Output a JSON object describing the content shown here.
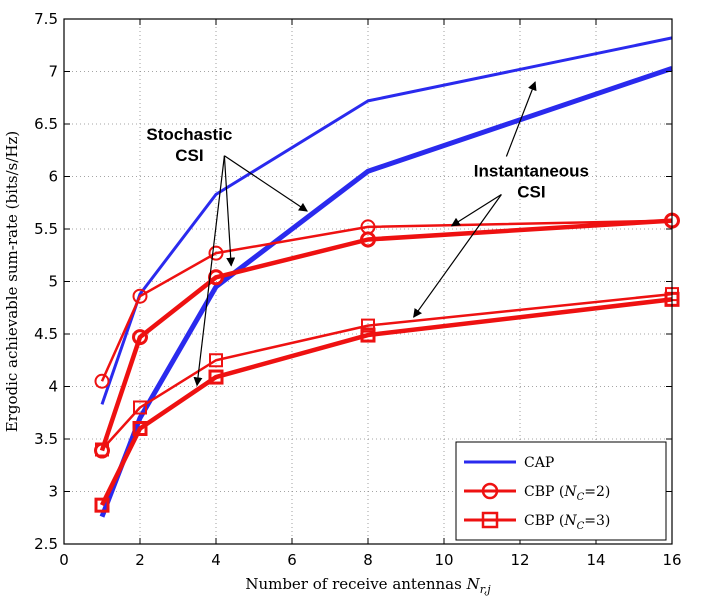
{
  "chart_data": {
    "type": "line",
    "title": "",
    "xlabel": "Number of receive antennas",
    "xlabel_symbol": "N",
    "xlabel_subscript": "r,j",
    "ylabel": "Ergodic achievable sum-rate (bits/s/Hz)",
    "xlim": [
      0,
      16
    ],
    "ylim": [
      2.5,
      7.5
    ],
    "xticks": [
      0,
      2,
      4,
      6,
      8,
      10,
      12,
      14,
      16
    ],
    "yticks": [
      2.5,
      3,
      3.5,
      4,
      4.5,
      5,
      5.5,
      6,
      6.5,
      7,
      7.5
    ],
    "grid": true,
    "legend_position": "bottom-right",
    "colors": {
      "cap": "#2a2aee",
      "cbp": "#ee1111"
    },
    "x": [
      1,
      2,
      4,
      8,
      16
    ],
    "series": [
      {
        "name": "CAP",
        "csi": "instantaneous",
        "color": "#2a2aee",
        "marker": "none",
        "width": 3,
        "values": [
          3.83,
          4.88,
          5.83,
          6.72,
          7.32
        ]
      },
      {
        "name": "CAP",
        "csi": "stochastic",
        "color": "#2a2aee",
        "marker": "none",
        "width": 5,
        "values": [
          2.76,
          3.7,
          4.95,
          6.05,
          7.03
        ]
      },
      {
        "name": "CBP (N_C=2)",
        "csi": "instantaneous",
        "color": "#ee1111",
        "marker": "circle",
        "width": 2.5,
        "values": [
          4.05,
          4.86,
          5.27,
          5.52,
          5.58
        ]
      },
      {
        "name": "CBP (N_C=2)",
        "csi": "stochastic",
        "color": "#ee1111",
        "marker": "circle",
        "width": 4.5,
        "values": [
          3.39,
          4.47,
          5.04,
          5.4,
          5.58
        ]
      },
      {
        "name": "CBP (N_C=3)",
        "csi": "instantaneous",
        "color": "#ee1111",
        "marker": "square",
        "width": 2.5,
        "values": [
          3.4,
          3.8,
          4.25,
          4.58,
          4.88
        ]
      },
      {
        "name": "CBP (N_C=3)",
        "csi": "stochastic",
        "color": "#ee1111",
        "marker": "square",
        "width": 4.5,
        "values": [
          2.87,
          3.6,
          4.09,
          4.49,
          4.83
        ]
      }
    ],
    "annotations": [
      {
        "label": "stochastic",
        "lines": [
          "Stochastic",
          "CSI"
        ],
        "text_at": [
          3.3,
          6.35
        ],
        "targets": [
          [
            6.4,
            5.67
          ],
          [
            4.4,
            5.15
          ],
          [
            3.5,
            4.01
          ]
        ]
      },
      {
        "label": "instantaneous",
        "lines": [
          "Instantaneous",
          "CSI"
        ],
        "text_at": [
          12.3,
          6.0
        ],
        "targets": [
          [
            12.4,
            6.9
          ],
          [
            10.2,
            5.53
          ],
          [
            9.2,
            4.66
          ]
        ]
      }
    ],
    "legend": [
      {
        "label": "CAP",
        "marker": "none",
        "color": "#2a2aee"
      },
      {
        "label": "CBP (N_C=2)",
        "prefix": "CBP (",
        "sym": "N",
        "sub": "C",
        "suffix": "=2)",
        "marker": "circle",
        "color": "#ee1111"
      },
      {
        "label": "CBP (N_C=3)",
        "prefix": "CBP (",
        "sym": "N",
        "sub": "C",
        "suffix": "=3)",
        "marker": "square",
        "color": "#ee1111"
      }
    ]
  }
}
